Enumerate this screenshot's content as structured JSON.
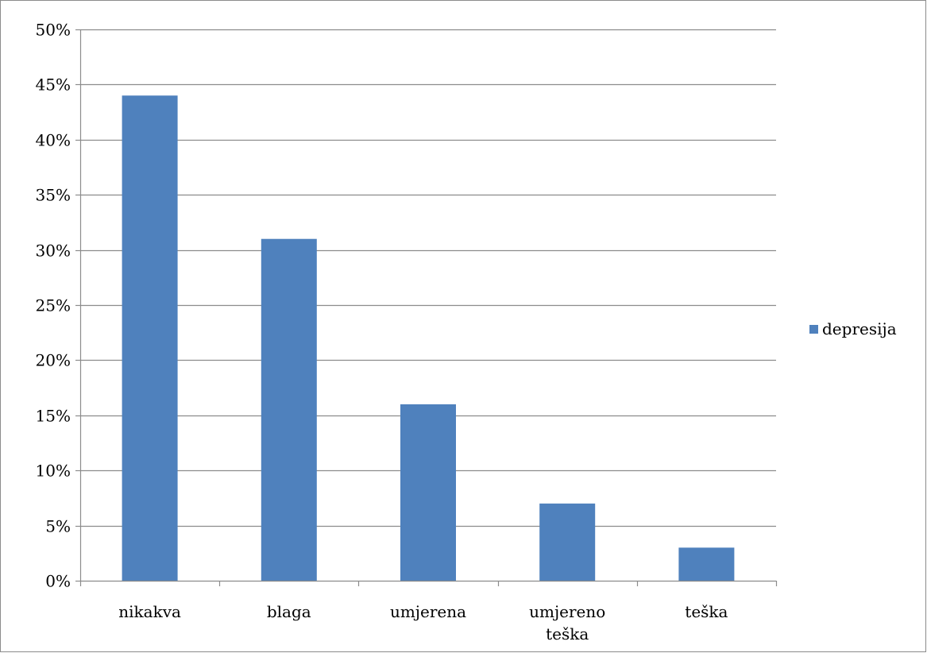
{
  "chart_data": {
    "type": "bar",
    "title": "",
    "xlabel": "",
    "ylabel": "",
    "categories": [
      [
        "nikakva"
      ],
      [
        "blaga"
      ],
      [
        "umjerena"
      ],
      [
        "umjereno",
        "teška"
      ],
      [
        "teška"
      ]
    ],
    "series": [
      {
        "name": "depresija",
        "color": "#4f81bd",
        "values": [
          44,
          31,
          16,
          7,
          3
        ]
      }
    ],
    "ylim": [
      0,
      50
    ],
    "y_step": 5,
    "y_tick_labels": [
      "0%",
      "5%",
      "10%",
      "15%",
      "20%",
      "25%",
      "30%",
      "35%",
      "40%",
      "45%",
      "50%"
    ],
    "grid": true,
    "legend_position": "right"
  }
}
